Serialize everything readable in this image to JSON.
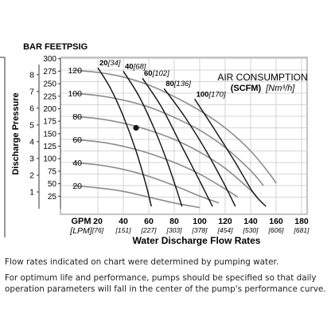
{
  "chart_data": {
    "type": "line",
    "title": "",
    "legend_title": "AIR CONSUMPTION",
    "legend_subtitle_bold": "(SCFM)",
    "legend_subtitle_italic": "[Nm³/h]",
    "ylabel": "Discharge Pressure",
    "xlabel": "Water Discharge Flow Rates",
    "x_unit_gpm": "GPM",
    "x_unit_lpm": "[LPM]",
    "y_unit_bar": "BAR",
    "y_unit_feet": "FEET",
    "y_unit_psig": "PSIG",
    "xlim": [
      0,
      180
    ],
    "ylim": [
      0,
      130
    ],
    "grid": true,
    "x_ticks": [
      {
        "gpm": "20",
        "lpm": "[76]",
        "v": 20
      },
      {
        "gpm": "40",
        "lpm": "[151]",
        "v": 40
      },
      {
        "gpm": "60",
        "lpm": "[227]",
        "v": 60
      },
      {
        "gpm": "80",
        "lpm": "[303]",
        "v": 80
      },
      {
        "gpm": "100",
        "lpm": "[378]",
        "v": 100
      },
      {
        "gpm": "120",
        "lpm": "[454]",
        "v": 120
      },
      {
        "gpm": "140",
        "lpm": "[530]",
        "v": 140
      },
      {
        "gpm": "160",
        "lpm": "[606]",
        "v": 160
      },
      {
        "gpm": "180",
        "lpm": "[681]",
        "v": 180
      }
    ],
    "psig_ticks": [
      20,
      40,
      60,
      80,
      100,
      120
    ],
    "feet_ticks": [
      25,
      50,
      75,
      100,
      125,
      150,
      175,
      200,
      225,
      250,
      275,
      300
    ],
    "bar_ticks": [
      1,
      2,
      3,
      4,
      5,
      6,
      7,
      8
    ],
    "performance_curves": [
      {
        "x": [
          0,
          20,
          40,
          60,
          80,
          100,
          120,
          140,
          155,
          160
        ],
        "y": [
          120,
          118,
          114,
          107,
          97,
          85,
          70,
          50,
          30,
          22
        ]
      },
      {
        "x": [
          0,
          20,
          40,
          60,
          80,
          100,
          120,
          140,
          150
        ],
        "y": [
          100,
          98,
          94,
          88,
          79,
          68,
          53,
          33,
          20
        ]
      },
      {
        "x": [
          0,
          20,
          40,
          60,
          80,
          100,
          120,
          140,
          145
        ],
        "y": [
          80,
          78,
          74,
          68,
          60,
          49,
          35,
          16,
          10
        ]
      },
      {
        "x": [
          0,
          20,
          40,
          60,
          80,
          100,
          120,
          130
        ],
        "y": [
          60,
          58,
          54,
          48,
          40,
          30,
          17,
          10
        ]
      },
      {
        "x": [
          0,
          20,
          40,
          60,
          80,
          100,
          115
        ],
        "y": [
          40,
          38,
          34,
          28,
          20,
          11,
          5
        ]
      },
      {
        "x": [
          0,
          20,
          40,
          60,
          80,
          100
        ],
        "y": [
          20,
          18,
          15,
          10,
          5,
          1
        ]
      }
    ],
    "air_curves": [
      {
        "label": "20",
        "label_metric": "[34]",
        "x": [
          20,
          30,
          40,
          50,
          58,
          62
        ],
        "y": [
          122,
          104,
          80,
          50,
          20,
          2
        ]
      },
      {
        "label": "40",
        "label_metric": "[68]",
        "x": [
          40,
          52,
          64,
          74,
          82,
          86
        ],
        "y": [
          119,
          98,
          70,
          42,
          16,
          2
        ]
      },
      {
        "label": "60",
        "label_metric": "[102]",
        "x": [
          55,
          70,
          85,
          100,
          110
        ],
        "y": [
          113,
          88,
          56,
          24,
          2
        ]
      },
      {
        "label": "80",
        "label_metric": "[136]",
        "x": [
          72,
          88,
          104,
          118,
          128
        ],
        "y": [
          104,
          80,
          52,
          24,
          2
        ]
      },
      {
        "label": "100",
        "label_metric": "[170]",
        "x": [
          96,
          112,
          128,
          142,
          152
        ],
        "y": [
          95,
          68,
          40,
          14,
          2
        ]
      }
    ],
    "point": {
      "x": 50,
      "y": 70
    }
  },
  "notes": [
    "Flow rates indicated on chart were determined by pumping water.",
    "For optimum life and performance, pumps should be specified so that daily operation parameters will fall in the center of the pump's performance curve."
  ]
}
